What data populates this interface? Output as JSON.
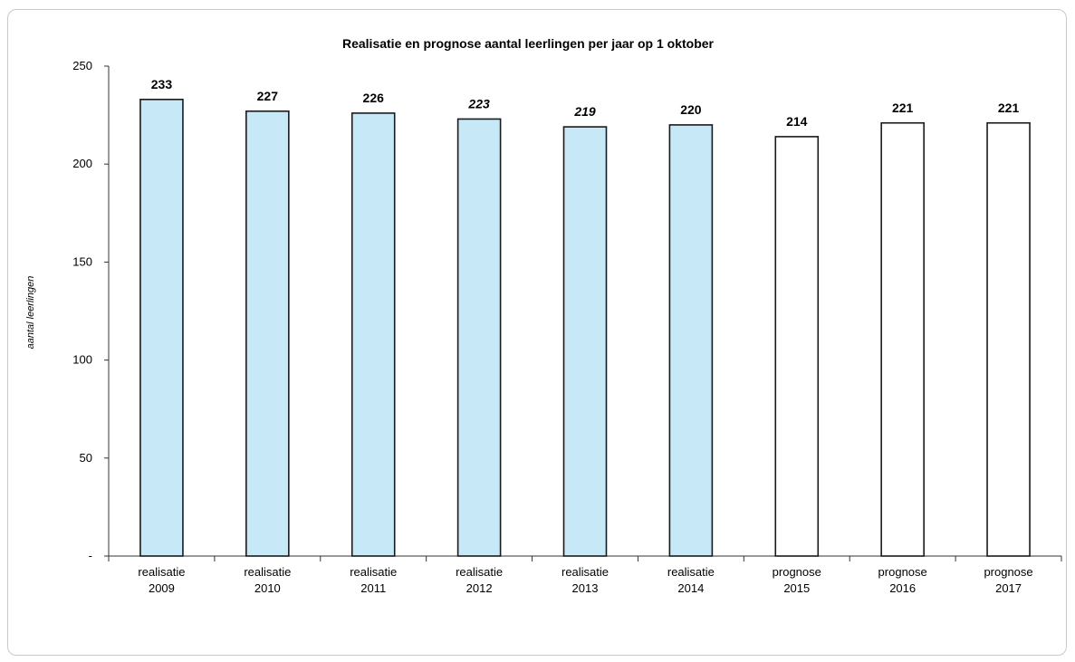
{
  "chart_data": {
    "type": "bar",
    "title": "Realisatie en prognose aantal leerlingen per jaar op 1 oktober",
    "xlabel": "",
    "ylabel": "aantal leerlingen",
    "ylim": [
      0,
      250
    ],
    "yticks": [
      0,
      50,
      100,
      150,
      200,
      250
    ],
    "ytick_labels": [
      "-",
      "50",
      "100",
      "150",
      "200",
      "250"
    ],
    "grid": false,
    "legend": "none",
    "categories": [
      [
        "realisatie",
        "2009"
      ],
      [
        "realisatie",
        "2010"
      ],
      [
        "realisatie",
        "2011"
      ],
      [
        "realisatie",
        "2012"
      ],
      [
        "realisatie",
        "2013"
      ],
      [
        "realisatie",
        "2014"
      ],
      [
        "prognose",
        "2015"
      ],
      [
        "prognose",
        "2016"
      ],
      [
        "prognose",
        "2017"
      ]
    ],
    "values": [
      233,
      227,
      226,
      223,
      219,
      220,
      214,
      221,
      221
    ],
    "value_labels": [
      "233",
      "227",
      "226",
      "223",
      "219",
      "220",
      "214",
      "221",
      "221"
    ],
    "italic_value_labels": [
      false,
      false,
      false,
      true,
      true,
      false,
      false,
      false,
      false
    ],
    "colors": {
      "realisatie": "#c6e8f7",
      "prognose": "#ffffff",
      "outline": "#1a1a1a"
    }
  }
}
